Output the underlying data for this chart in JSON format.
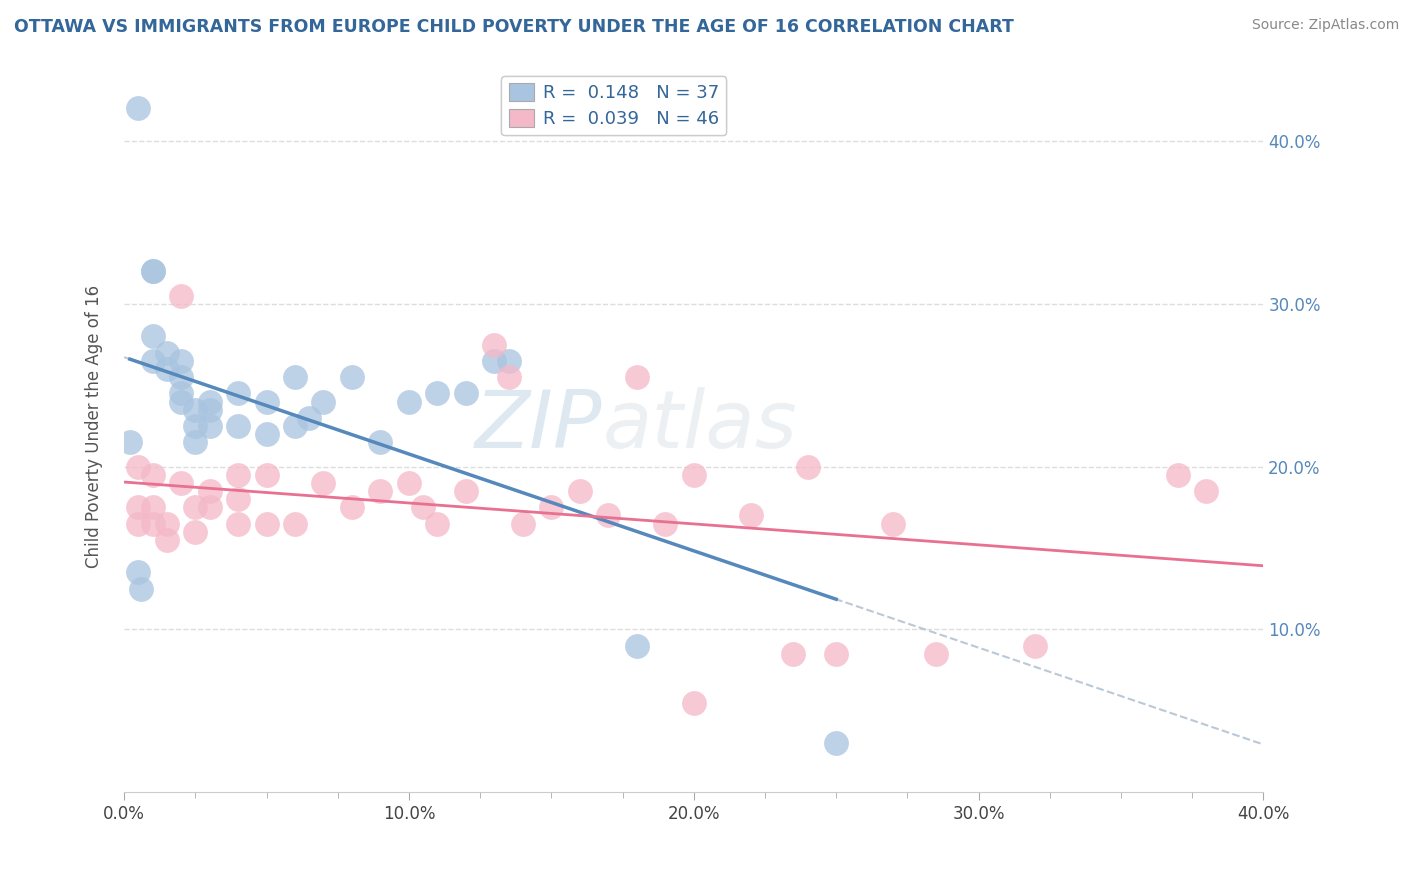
{
  "title": "OTTAWA VS IMMIGRANTS FROM EUROPE CHILD POVERTY UNDER THE AGE OF 16 CORRELATION CHART",
  "source": "Source: ZipAtlas.com",
  "ylabel": "Child Poverty Under the Age of 16",
  "xlim": [
    0.0,
    0.4
  ],
  "ylim": [
    0.0,
    0.45
  ],
  "yticks": [
    0.1,
    0.2,
    0.3,
    0.4
  ],
  "xticks": [
    0.0,
    0.1,
    0.2,
    0.3,
    0.4
  ],
  "ottawa_color": "#a8c4e0",
  "immigrants_color": "#f4b8c8",
  "trendline_ottawa_color": "#5588bb",
  "trendline_immigrants_color": "#e87090",
  "watermark_color": "#ccdde8",
  "ottawa_x": [
    0.005,
    0.01,
    0.01,
    0.01,
    0.01,
    0.015,
    0.015,
    0.02,
    0.02,
    0.02,
    0.02,
    0.025,
    0.025,
    0.025,
    0.03,
    0.03,
    0.03,
    0.04,
    0.04,
    0.05,
    0.05,
    0.06,
    0.06,
    0.065,
    0.07,
    0.08,
    0.09,
    0.1,
    0.11,
    0.12,
    0.13,
    0.135,
    0.18,
    0.002,
    0.005,
    0.006,
    0.25
  ],
  "ottawa_y": [
    0.42,
    0.32,
    0.32,
    0.28,
    0.265,
    0.27,
    0.26,
    0.265,
    0.255,
    0.245,
    0.24,
    0.235,
    0.225,
    0.215,
    0.24,
    0.235,
    0.225,
    0.245,
    0.225,
    0.24,
    0.22,
    0.255,
    0.225,
    0.23,
    0.24,
    0.255,
    0.215,
    0.24,
    0.245,
    0.245,
    0.265,
    0.265,
    0.09,
    0.215,
    0.135,
    0.125,
    0.03
  ],
  "immigrants_x": [
    0.005,
    0.005,
    0.005,
    0.01,
    0.01,
    0.01,
    0.015,
    0.015,
    0.02,
    0.02,
    0.025,
    0.025,
    0.03,
    0.03,
    0.04,
    0.04,
    0.04,
    0.05,
    0.05,
    0.06,
    0.07,
    0.08,
    0.09,
    0.1,
    0.105,
    0.11,
    0.12,
    0.13,
    0.135,
    0.14,
    0.15,
    0.16,
    0.17,
    0.18,
    0.19,
    0.2,
    0.22,
    0.235,
    0.25,
    0.27,
    0.285,
    0.32,
    0.37,
    0.38,
    0.2,
    0.24
  ],
  "immigrants_y": [
    0.2,
    0.175,
    0.165,
    0.195,
    0.175,
    0.165,
    0.165,
    0.155,
    0.305,
    0.19,
    0.175,
    0.16,
    0.185,
    0.175,
    0.195,
    0.18,
    0.165,
    0.195,
    0.165,
    0.165,
    0.19,
    0.175,
    0.185,
    0.19,
    0.175,
    0.165,
    0.185,
    0.275,
    0.255,
    0.165,
    0.175,
    0.185,
    0.17,
    0.255,
    0.165,
    0.195,
    0.17,
    0.085,
    0.085,
    0.165,
    0.085,
    0.09,
    0.195,
    0.185,
    0.055,
    0.2
  ]
}
